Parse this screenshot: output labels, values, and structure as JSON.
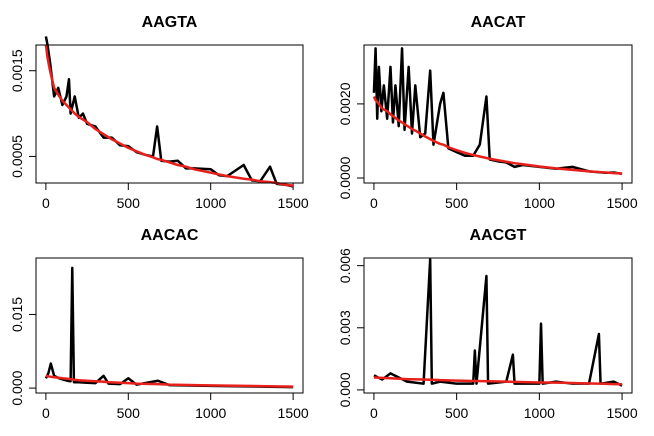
{
  "chart_data": [
    {
      "type": "line",
      "title": "AAGTA",
      "x": [
        0,
        10,
        25,
        50,
        75,
        100,
        125,
        140,
        150,
        175,
        200,
        225,
        250,
        300,
        350,
        400,
        450,
        500,
        550,
        600,
        650,
        675,
        700,
        750,
        800,
        850,
        900,
        1000,
        1050,
        1100,
        1200,
        1250,
        1300,
        1360,
        1400,
        1450,
        1500
      ],
      "series": [
        {
          "color": "#000000",
          "values": [
            0.0019,
            0.0018,
            0.0016,
            0.0012,
            0.0013,
            0.0011,
            0.0012,
            0.0014,
            0.001,
            0.0012,
            0.00095,
            0.001,
            0.00088,
            0.00085,
            0.00072,
            0.00072,
            0.00063,
            0.00062,
            0.00055,
            0.00052,
            0.0005,
            0.00085,
            0.00045,
            0.00044,
            0.00045,
            0.00036,
            0.00036,
            0.00035,
            0.00028,
            0.00027,
            0.0004,
            0.00022,
            0.00021,
            0.00038,
            0.00018,
            0.00017,
            0.00015
          ]
        },
        {
          "color": "#e8201c",
          "values": [
            0.0018,
            0.00165,
            0.0015,
            0.0013,
            0.00122,
            0.00115,
            0.0011,
            0.00107,
            0.00105,
            0.001,
            0.00096,
            0.00093,
            0.0009,
            0.00082,
            0.00076,
            0.0007,
            0.00065,
            0.0006,
            0.00056,
            0.00052,
            0.00049,
            0.00047,
            0.00046,
            0.00043,
            0.0004,
            0.00038,
            0.00035,
            0.00031,
            0.00029,
            0.00027,
            0.00024,
            0.00023,
            0.00021,
            0.0002,
            0.00019,
            0.00017,
            0.00016
          ]
        }
      ],
      "xlim": [
        -60,
        1560
      ],
      "xticks": [
        0,
        500,
        1000,
        1500
      ],
      "ylim": [
        0.00019,
        0.0018
      ],
      "yticks": [
        0.0005,
        0.0015
      ]
    },
    {
      "type": "line",
      "title": "AACAT",
      "x": [
        0,
        10,
        20,
        30,
        45,
        60,
        80,
        100,
        115,
        130,
        150,
        170,
        185,
        210,
        230,
        250,
        280,
        310,
        340,
        360,
        400,
        420,
        450,
        500,
        550,
        600,
        640,
        680,
        700,
        750,
        800,
        850,
        900,
        1000,
        1100,
        1200,
        1300,
        1400,
        1450,
        1500
      ],
      "series": [
        {
          "color": "#000000",
          "values": [
            0.0023,
            0.0035,
            0.0016,
            0.003,
            0.0018,
            0.0025,
            0.0016,
            0.003,
            0.0015,
            0.0025,
            0.0014,
            0.0035,
            0.0013,
            0.003,
            0.0012,
            0.0025,
            0.0011,
            0.0012,
            0.0029,
            0.0009,
            0.002,
            0.0023,
            0.0008,
            0.0007,
            0.0006,
            0.0006,
            0.0009,
            0.0022,
            0.0005,
            0.00045,
            0.00042,
            0.0003,
            0.00035,
            0.0003,
            0.00025,
            0.0003,
            0.00018,
            0.00014,
            0.00015,
            0.00011
          ]
        },
        {
          "color": "#e8201c",
          "values": [
            0.0022,
            0.0021,
            0.00205,
            0.002,
            0.0019,
            0.00185,
            0.0018,
            0.00172,
            0.00167,
            0.00162,
            0.00155,
            0.0015,
            0.00145,
            0.00138,
            0.00132,
            0.00128,
            0.0012,
            0.00112,
            0.00105,
            0.001,
            0.00092,
            0.0009,
            0.00083,
            0.00075,
            0.00068,
            0.00062,
            0.00058,
            0.00054,
            0.00052,
            0.00048,
            0.00044,
            0.0004,
            0.00037,
            0.00031,
            0.00026,
            0.00022,
            0.00018,
            0.00015,
            0.00013,
            0.00012
          ]
        }
      ],
      "xlim": [
        -60,
        1560
      ],
      "xticks": [
        0,
        500,
        1000,
        1500
      ],
      "ylim": [
        -0.000135,
        0.00359
      ],
      "yticks": [
        {
          "value": 0,
          "label": "0.0000"
        },
        {
          "value": 0.002,
          "label": "0.0020"
        }
      ]
    },
    {
      "type": "line",
      "title": "AACAC",
      "x": [
        0,
        15,
        30,
        50,
        80,
        100,
        130,
        150,
        160,
        170,
        200,
        250,
        300,
        350,
        380,
        450,
        500,
        550,
        680,
        750,
        900,
        1100,
        1300,
        1500
      ],
      "series": [
        {
          "color": "#000000",
          "values": [
            0.002,
            0.003,
            0.005,
            0.0025,
            0.002,
            0.0018,
            0.0015,
            0.0014,
            0.0245,
            0.0012,
            0.0012,
            0.0011,
            0.001,
            0.0025,
            0.0009,
            0.0008,
            0.002,
            0.0007,
            0.0015,
            0.0006,
            0.0005,
            0.0004,
            0.0003,
            0.0002
          ]
        },
        {
          "color": "#e8201c",
          "values": [
            0.0025,
            0.0024,
            0.0023,
            0.0022,
            0.0021,
            0.002,
            0.0019,
            0.0018,
            0.0018,
            0.0017,
            0.0016,
            0.0015,
            0.0014,
            0.0013,
            0.0012,
            0.0011,
            0.001,
            0.0009,
            0.0008,
            0.0007,
            0.0006,
            0.0005,
            0.0004,
            0.0003
          ]
        }
      ],
      "xlim": [
        -60,
        1560
      ],
      "xticks": [
        0,
        500,
        1000,
        1500
      ],
      "ylim": [
        -0.001,
        0.0265
      ],
      "yticks": [
        {
          "value": 0,
          "label": "0.000"
        },
        0.015
      ]
    },
    {
      "type": "line",
      "title": "AACGT",
      "x": [
        0,
        50,
        100,
        200,
        300,
        340,
        350,
        400,
        500,
        600,
        610,
        620,
        680,
        690,
        800,
        840,
        850,
        1000,
        1010,
        1020,
        1100,
        1200,
        1300,
        1360,
        1370,
        1450,
        1500
      ],
      "series": [
        {
          "color": "#000000",
          "values": [
            0.0007,
            0.0005,
            0.0008,
            0.0004,
            0.0003,
            0.0063,
            0.0003,
            0.0004,
            0.0003,
            0.0003,
            0.0019,
            0.0003,
            0.0055,
            0.0003,
            0.0004,
            0.0017,
            0.0003,
            0.0003,
            0.0032,
            0.0003,
            0.0004,
            0.0003,
            0.0003,
            0.0027,
            0.0003,
            0.0004,
            0.0002
          ]
        },
        {
          "color": "#e8201c",
          "values": [
            0.0006,
            0.00058,
            0.00056,
            0.00052,
            0.0005,
            0.00049,
            0.00049,
            0.00047,
            0.00045,
            0.00043,
            0.00043,
            0.00043,
            0.00042,
            0.00042,
            0.0004,
            0.00039,
            0.00039,
            0.00036,
            0.00036,
            0.00036,
            0.00035,
            0.00033,
            0.00031,
            0.0003,
            0.0003,
            0.00028,
            0.00027
          ]
        }
      ],
      "xlim": [
        -60,
        1560
      ],
      "xticks": [
        0,
        500,
        1000,
        1500
      ],
      "ylim": [
        -0.00015,
        0.00637
      ],
      "yticks": [
        {
          "value": 0,
          "label": "0.000"
        },
        0.003,
        0.006
      ]
    }
  ]
}
